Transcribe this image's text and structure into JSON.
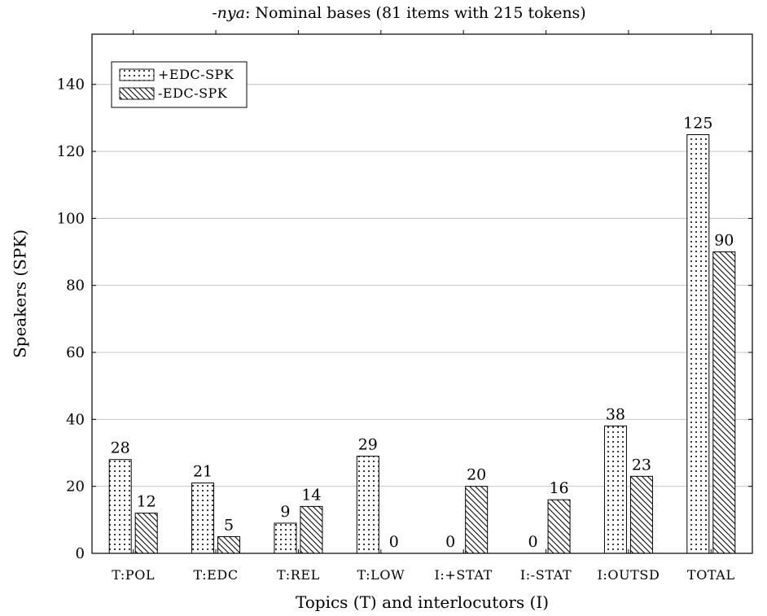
{
  "chart_data": {
    "type": "bar",
    "title_prefix": "-nya",
    "title_rest": ": Nominal bases (81 items with 215 tokens)",
    "xlabel": "Topics (T) and interlocutors (I)",
    "ylabel": "Speakers (SPK)",
    "categories": [
      "T:POL",
      "T:EDC",
      "T:REL",
      "T:LOW",
      "I:+STAT",
      "I:-STAT",
      "I:OUTSD",
      "TOTAL"
    ],
    "series": [
      {
        "name": "+EDC-SPK",
        "pattern": "dots",
        "values": [
          28,
          21,
          9,
          29,
          0,
          0,
          38,
          125
        ]
      },
      {
        "name": "-EDC-SPK",
        "pattern": "north-west-lines",
        "values": [
          12,
          5,
          14,
          0,
          20,
          16,
          23,
          90
        ]
      }
    ],
    "ylim": [
      0,
      155
    ],
    "yticks": [
      0,
      20,
      40,
      60,
      80,
      100,
      120,
      140
    ],
    "grid": "horizontal",
    "legend_position": "top-left",
    "colors": {
      "bar_stroke": "#000000",
      "grid": "#bdbdbd",
      "background": "#ffffff"
    }
  }
}
